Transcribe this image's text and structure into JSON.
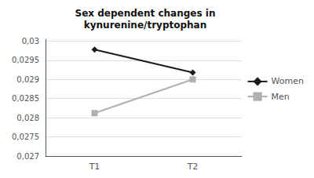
{
  "chart_data": {
    "type": "line",
    "title": "Sex dependent changes in\nkynurenine/tryptophan",
    "categories": [
      "T1",
      "T2"
    ],
    "series": [
      {
        "name": "Women",
        "color": "#1a1a1a",
        "marker": "diamond",
        "values": [
          0.02978,
          0.02918
        ]
      },
      {
        "name": "Men",
        "color": "#b0b0b0",
        "marker": "square",
        "values": [
          0.02812,
          0.029
        ]
      }
    ],
    "ylim": [
      0.027,
      0.03005
    ],
    "yticks": [
      {
        "value": 0.027,
        "label": "0,027"
      },
      {
        "value": 0.0275,
        "label": "0,0275"
      },
      {
        "value": 0.028,
        "label": "0,028"
      },
      {
        "value": 0.0285,
        "label": "0,0285"
      },
      {
        "value": 0.029,
        "label": "0,029"
      },
      {
        "value": 0.0295,
        "label": "0,0295"
      },
      {
        "value": 0.03,
        "label": "0,03"
      }
    ],
    "grid": true,
    "legend": "right"
  }
}
